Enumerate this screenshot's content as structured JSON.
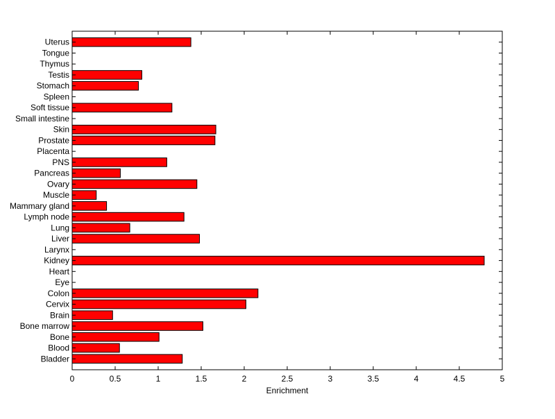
{
  "chart_data": {
    "type": "bar",
    "orientation": "horizontal",
    "title": "",
    "xlabel": "Enrichment",
    "ylabel": "",
    "xlim": [
      0,
      5
    ],
    "xticks": [
      "0",
      "0.5",
      "1",
      "1.5",
      "2",
      "2.5",
      "3",
      "3.5",
      "4",
      "4.5",
      "5"
    ],
    "grid": false,
    "legend": "none",
    "bar_color": "#ff0000",
    "categories": [
      "Bladder",
      "Blood",
      "Bone",
      "Bone marrow",
      "Brain",
      "Cervix",
      "Colon",
      "Eye",
      "Heart",
      "Kidney",
      "Larynx",
      "Liver",
      "Lung",
      "Lymph node",
      "Mammary gland",
      "Muscle",
      "Ovary",
      "Pancreas",
      "PNS",
      "Placenta",
      "Prostate",
      "Skin",
      "Small intestine",
      "Soft tissue",
      "Spleen",
      "Stomach",
      "Testis",
      "Thymus",
      "Tongue",
      "Uterus"
    ],
    "values": [
      1.28,
      0.55,
      1.01,
      1.52,
      0.47,
      2.02,
      2.16,
      0,
      0,
      4.79,
      0,
      1.48,
      0.67,
      1.3,
      0.4,
      0.28,
      1.45,
      0.56,
      1.1,
      0,
      1.66,
      1.67,
      0,
      1.16,
      0,
      0.77,
      0.81,
      0,
      0,
      1.38
    ]
  }
}
